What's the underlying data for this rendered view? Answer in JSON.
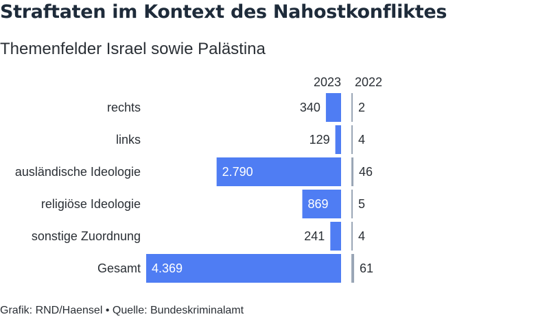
{
  "chart_data": {
    "type": "bar",
    "title": "Straftaten im Kontext des Nahostkonfliktes",
    "subtitle": "Themenfelder Israel sowie Palästina",
    "categories": [
      "rechts",
      "links",
      "ausländische Ideologie",
      "religiöse Ideologie",
      "sonstige Zuordnung",
      "Gesamt"
    ],
    "series": [
      {
        "name": "2023",
        "values": [
          340,
          129,
          2790,
          869,
          241,
          4369
        ],
        "labels": [
          "340",
          "129",
          "2.790",
          "869",
          "241",
          "4.369"
        ],
        "color": "#4f7df3"
      },
      {
        "name": "2022",
        "values": [
          2,
          4,
          46,
          5,
          4,
          61
        ],
        "labels": [
          "2",
          "4",
          "46",
          "5",
          "4",
          "61"
        ],
        "color": "#9aa6b6"
      }
    ],
    "source": "Grafik: RND/Haensel • Quelle: Bundeskriminalamt"
  }
}
